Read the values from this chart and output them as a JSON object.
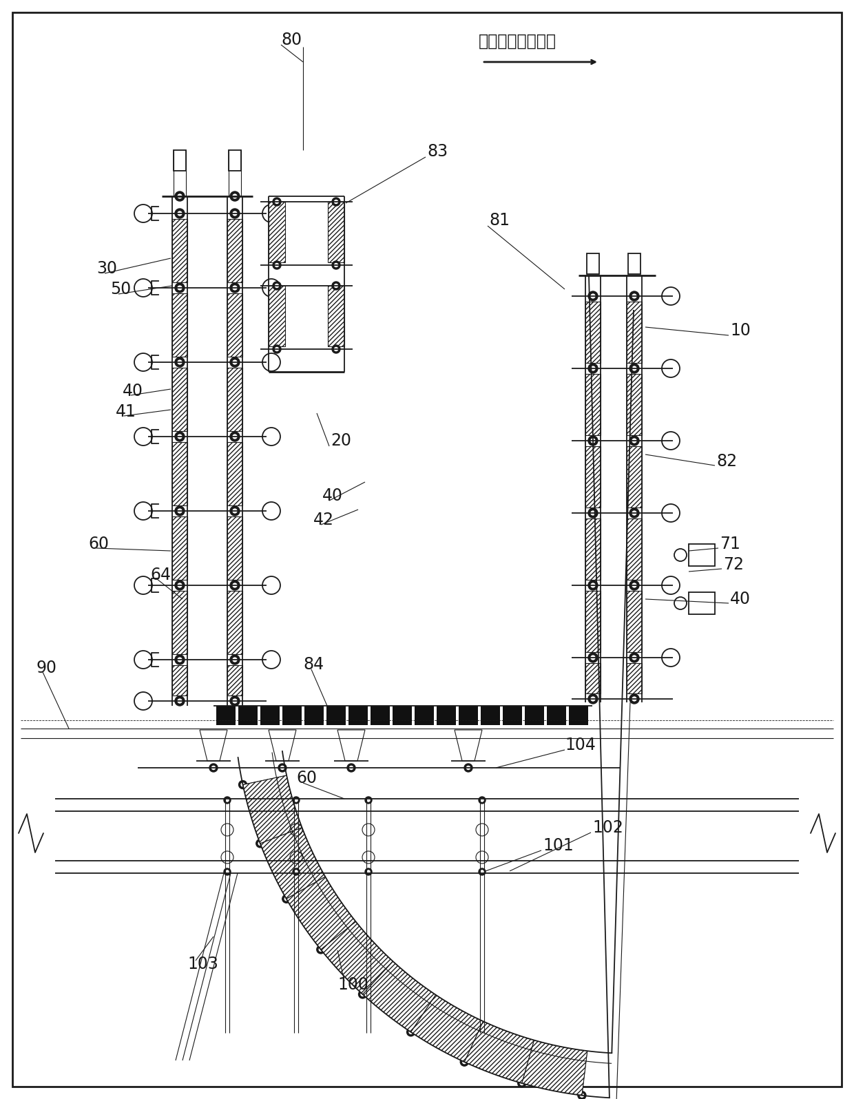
{
  "bg_color": "#ffffff",
  "line_color": "#1a1a1a",
  "annotation_label": "浇筑空间宽度方向",
  "fig_width": 12.4,
  "fig_height": 15.96,
  "lw_thin": 0.8,
  "lw_med": 1.3,
  "lw_thick": 2.0,
  "label_fs": 17
}
